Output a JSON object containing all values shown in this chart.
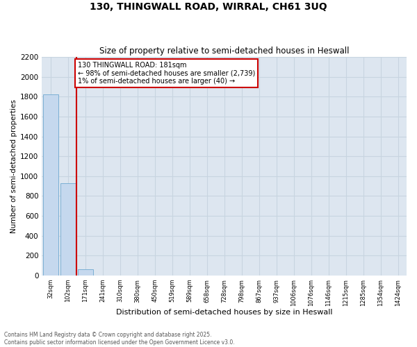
{
  "title1": "130, THINGWALL ROAD, WIRRAL, CH61 3UQ",
  "title2": "Size of property relative to semi-detached houses in Heswall",
  "xlabel": "Distribution of semi-detached houses by size in Heswall",
  "ylabel": "Number of semi-detached properties",
  "categories": [
    "32sqm",
    "102sqm",
    "171sqm",
    "241sqm",
    "310sqm",
    "380sqm",
    "450sqm",
    "519sqm",
    "589sqm",
    "658sqm",
    "728sqm",
    "798sqm",
    "867sqm",
    "937sqm",
    "1006sqm",
    "1076sqm",
    "1146sqm",
    "1215sqm",
    "1285sqm",
    "1354sqm",
    "1424sqm"
  ],
  "bar_values": [
    1820,
    930,
    60,
    0,
    0,
    0,
    0,
    0,
    0,
    0,
    0,
    0,
    0,
    0,
    0,
    0,
    0,
    0,
    0,
    0,
    0
  ],
  "bar_color": "#c5d8ee",
  "bar_edge_color": "#7bafd4",
  "ylim": [
    0,
    2200
  ],
  "yticks": [
    0,
    200,
    400,
    600,
    800,
    1000,
    1200,
    1400,
    1600,
    1800,
    2000,
    2200
  ],
  "property_line_index": 2,
  "annotation_text": "130 THINGWALL ROAD: 181sqm\n← 98% of semi-detached houses are smaller (2,739)\n1% of semi-detached houses are larger (40) →",
  "annotation_color": "#cc0000",
  "grid_color": "#c8d4e0",
  "bg_color": "#dde6f0",
  "footer1": "Contains HM Land Registry data © Crown copyright and database right 2025.",
  "footer2": "Contains public sector information licensed under the Open Government Licence v3.0."
}
